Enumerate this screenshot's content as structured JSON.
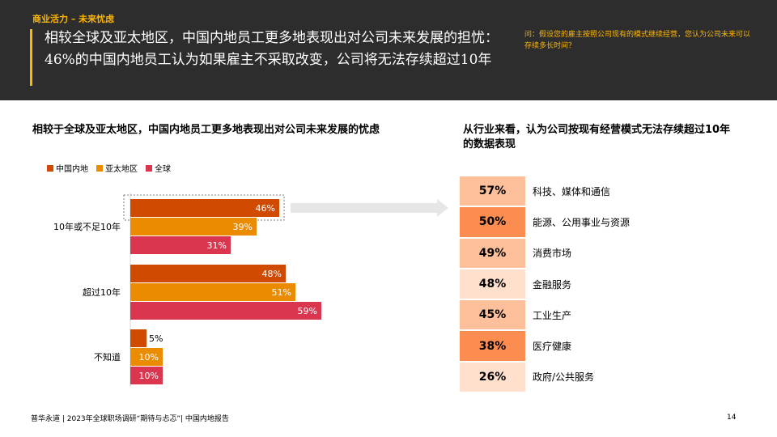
{
  "header": {
    "tag": "商业活力 – 未来忧虑",
    "headline": "相较全球及亚太地区，中国内地员工更多地表现出对公司未来发展的担忧：46%的中国内地员工认为如果雇主不采取改变，公司将无法存续超过10年",
    "question": "问：假设您的雇主按照公司现有的模式继续经营，您认为公司未来可以存续多长时间？"
  },
  "chart_data": [
    {
      "type": "bar",
      "orientation": "horizontal",
      "title": "相较于全球及亚太地区，中国内地员工更多地表现出对公司未来发展的忧虑",
      "categories": [
        "10年或不足10年",
        "超过10年",
        "不知道"
      ],
      "series": [
        {
          "name": "中国内地",
          "color": "#d04a02",
          "values": [
            46,
            48,
            5
          ],
          "labels": [
            "46%",
            "48%",
            "5%"
          ]
        },
        {
          "name": "亚太地区",
          "color": "#eb8c00",
          "values": [
            39,
            51,
            10
          ],
          "labels": [
            "39%",
            "51%",
            "10%"
          ]
        },
        {
          "name": "全球",
          "color": "#db3650",
          "values": [
            31,
            59,
            10
          ],
          "labels": [
            "31%",
            "59%",
            "10%"
          ]
        }
      ],
      "xlim": [
        0,
        100
      ],
      "grid": false,
      "legend_position": "top-left",
      "highlighted": {
        "category": "10年或不足10年",
        "series": "中国内地"
      }
    },
    {
      "type": "table",
      "title": "从行业来看，认为公司按现有经营模式无法存续超过10年的数据表现",
      "rows": [
        {
          "value": 57,
          "value_label": "57%",
          "label": "科技、媒体和通信",
          "color": "#fdc09a"
        },
        {
          "value": 50,
          "value_label": "50%",
          "label": "能源、公用事业与资源",
          "color": "#fb8d51"
        },
        {
          "value": 49,
          "value_label": "49%",
          "label": "消费市场",
          "color": "#fdc09a"
        },
        {
          "value": 48,
          "value_label": "48%",
          "label": "金融服务",
          "color": "#fee0cd"
        },
        {
          "value": 45,
          "value_label": "45%",
          "label": "工业生产",
          "color": "#fdc09a"
        },
        {
          "value": 38,
          "value_label": "38%",
          "label": "医疗健康",
          "color": "#fb8d51"
        },
        {
          "value": 26,
          "value_label": "26%",
          "label": "政府/公共服务",
          "color": "#fee0cd"
        }
      ]
    }
  ],
  "footer": {
    "text": "普华永道 | 2023年全球职场调研“期待与忐忑”| 中国内地报告",
    "page_number": "14"
  }
}
